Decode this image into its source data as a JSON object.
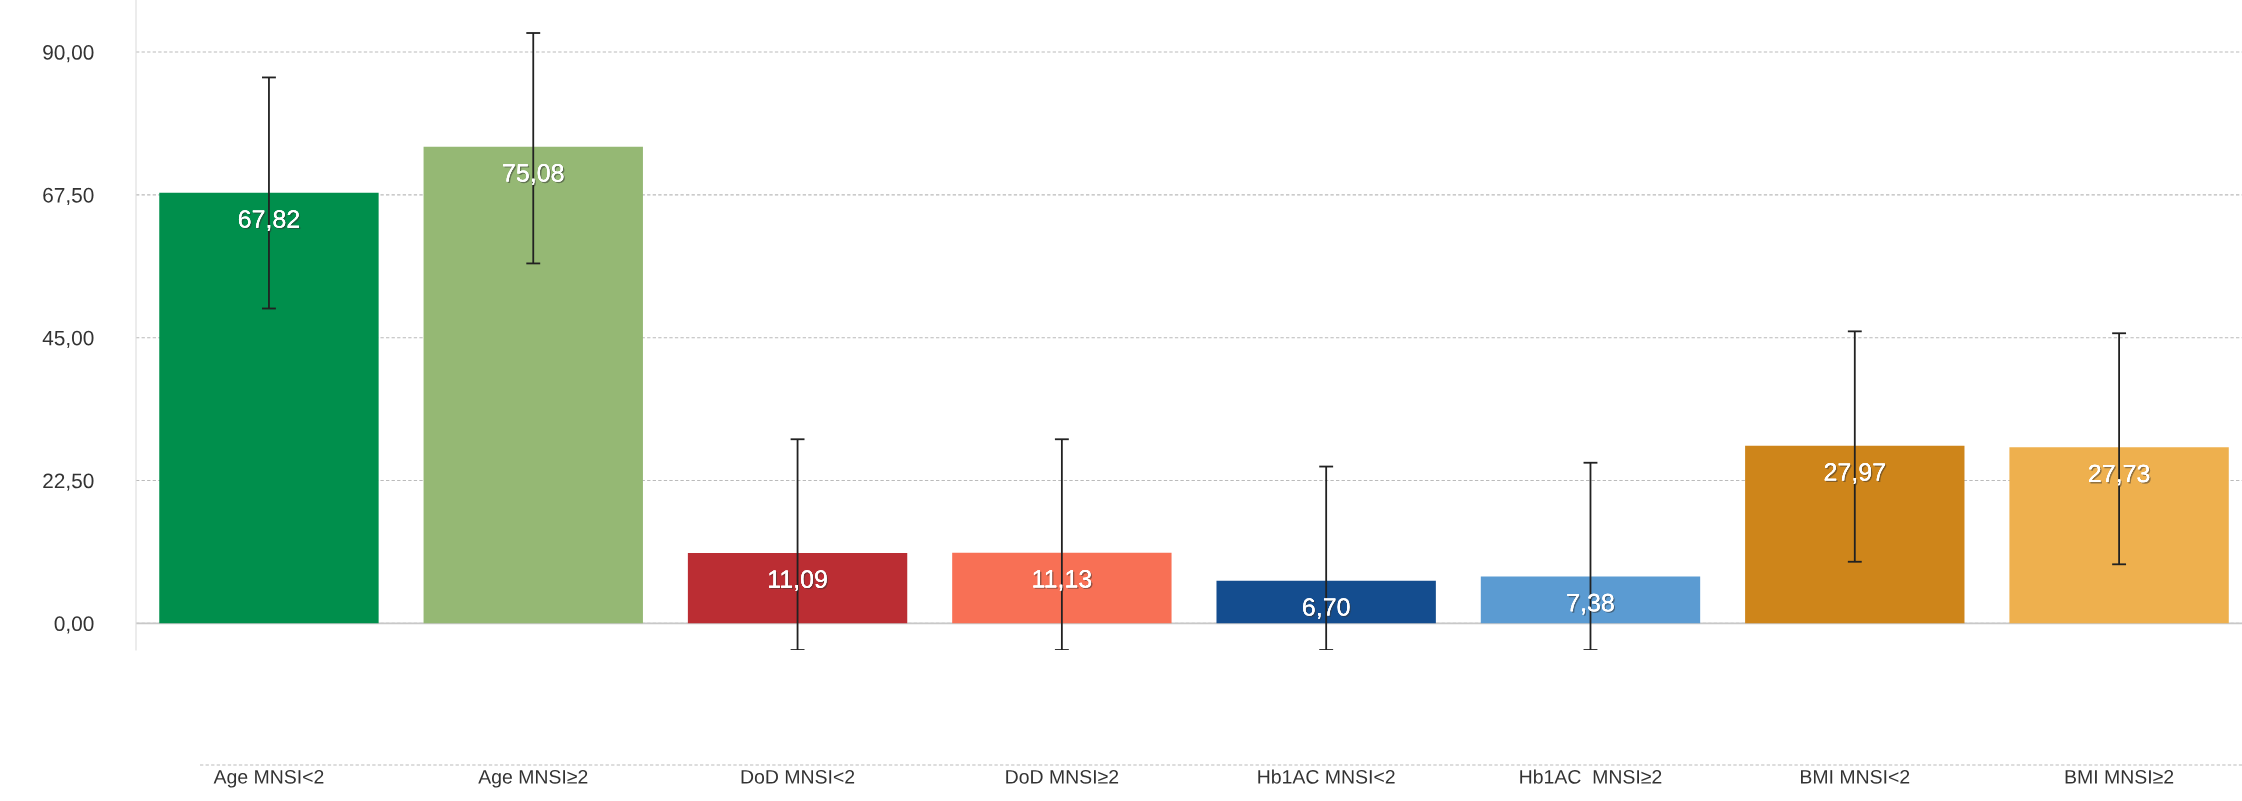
{
  "chart_data": {
    "type": "bar",
    "categories": [
      "Age MNSI<2",
      "Age MNSI≥2",
      "DoD MNSI<2",
      "DoD MNSI≥2",
      "Hb1AC MNSI<2",
      "Hb1AC  MNSI≥2",
      "BMI MNSI<2",
      "BMI MNSI≥2"
    ],
    "values": [
      67.82,
      75.08,
      11.09,
      11.13,
      6.7,
      7.38,
      27.97,
      27.73
    ],
    "value_labels": [
      "67,82",
      "75,08",
      "11,09",
      "11,13",
      "6,70",
      "7,38",
      "27,97",
      "27,73"
    ],
    "colors": [
      "#008f4c",
      "#95b874",
      "#bb2d33",
      "#f87055",
      "#144d8f",
      "#5b9bd2",
      "#ce851a",
      "#eeb04e"
    ],
    "errors": [
      [
        49.6,
        86.0
      ],
      [
        56.7,
        93.0
      ],
      [
        -4.2,
        29.0
      ],
      [
        -4.2,
        29.0
      ],
      [
        -4.2,
        24.7
      ],
      [
        -4.2,
        25.3
      ],
      [
        9.7,
        46.0
      ],
      [
        9.3,
        45.7
      ]
    ],
    "ylim": [
      -4.2,
      98.2
    ],
    "yticks": [
      {
        "value": 0,
        "label": "0,00"
      },
      {
        "value": 22.5,
        "label": "22,50"
      },
      {
        "value": 45,
        "label": "45,00"
      },
      {
        "value": 67.5,
        "label": "67,50"
      },
      {
        "value": 90,
        "label": "90,00"
      }
    ],
    "grid": "y"
  }
}
